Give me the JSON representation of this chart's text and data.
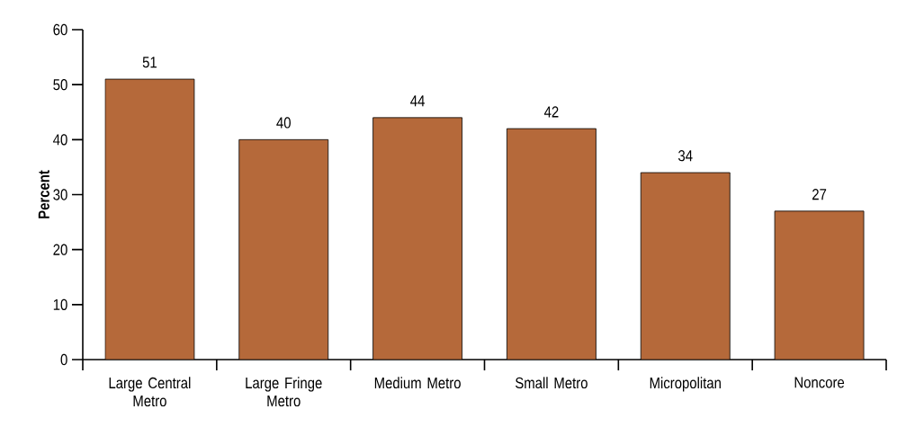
{
  "chart_data": {
    "type": "bar",
    "ylabel": "Percent",
    "categories": [
      "Large Central Metro",
      "Large Fringe Metro",
      "Medium Metro",
      "Small Metro",
      "Micropolitan",
      "Noncore"
    ],
    "values": [
      51,
      40,
      44,
      42,
      34,
      27
    ],
    "color": "#b5693a",
    "ylim": [
      0,
      60
    ],
    "yticks": [
      0,
      10,
      20,
      30,
      40,
      50,
      60
    ],
    "data_labels": true,
    "grid": false
  }
}
